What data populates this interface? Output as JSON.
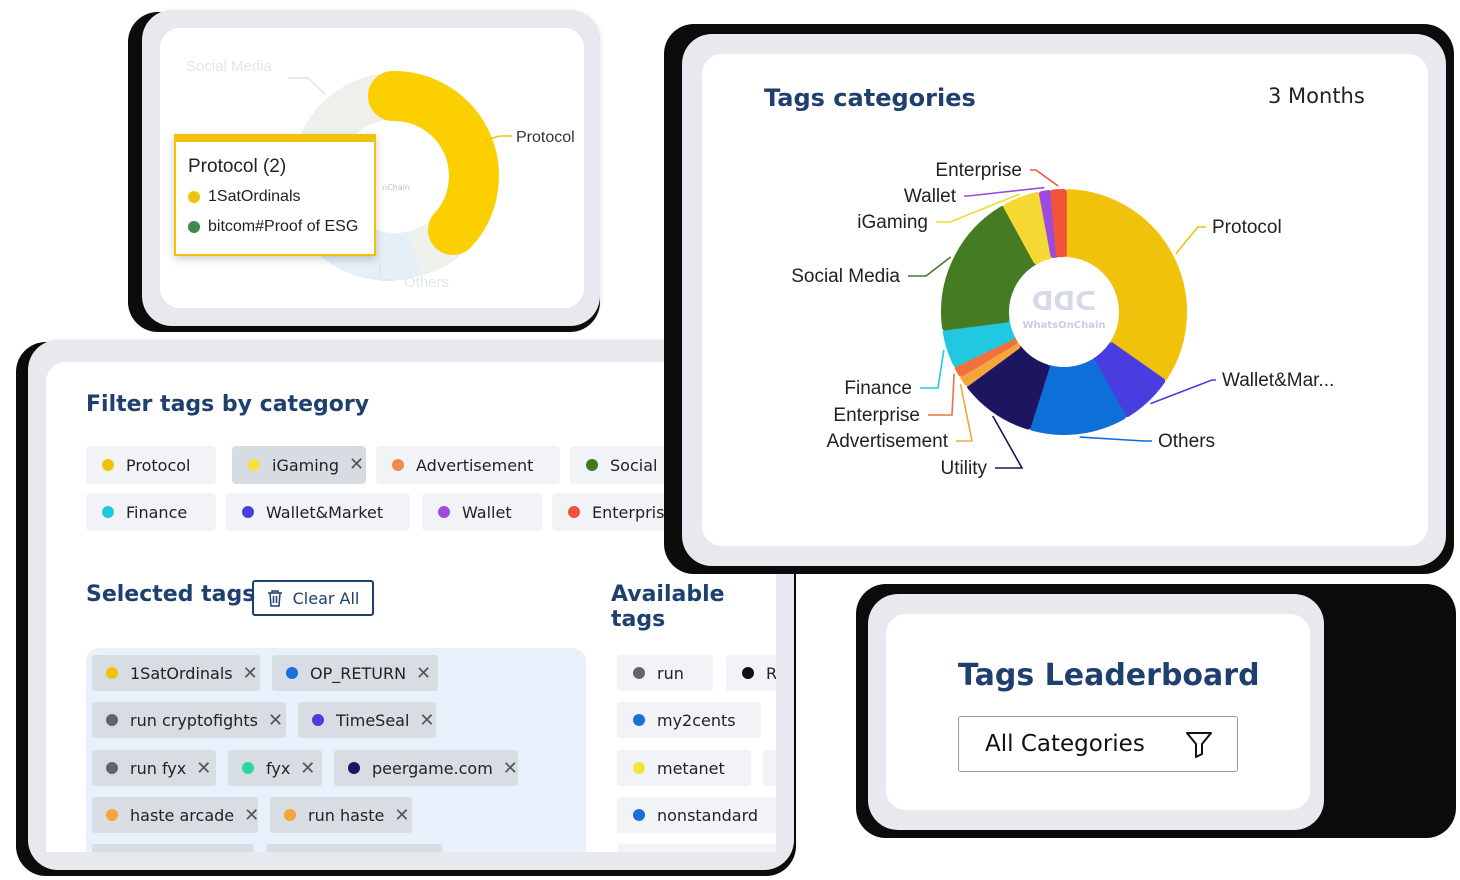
{
  "tooltip_card": {
    "labels": {
      "social_media": "Social Media",
      "protocol": "Protocol",
      "others": "Others"
    },
    "tooltip": {
      "title": "Protocol (2)",
      "items": [
        {
          "label": "1SatOrdinals",
          "color": "#f0c20c"
        },
        {
          "label": "bitcom#Proof of ESG",
          "color": "#3f8a4c"
        }
      ]
    }
  },
  "filter_card": {
    "title": "Filter tags by category",
    "categories": [
      {
        "label": "Protocol",
        "color": "#f0c20c",
        "selected": false
      },
      {
        "label": "iGaming",
        "color": "#f5e23a",
        "selected": true
      },
      {
        "label": "Advertisement",
        "color": "#f28a4b",
        "selected": false
      },
      {
        "label": "Social Media",
        "color": "#3f7a22",
        "selected": false
      },
      {
        "label": "Finance",
        "color": "#22c8e0",
        "selected": false
      },
      {
        "label": "Wallet&Market",
        "color": "#4a3de0",
        "selected": false
      },
      {
        "label": "Wallet",
        "color": "#9b4be0",
        "selected": false
      },
      {
        "label": "Enterprise",
        "color": "#f0553a",
        "selected": false
      }
    ],
    "selected_title": "Selected tags",
    "clear_all_label": "Clear All",
    "available_title": "Available tags",
    "selected_tags": [
      {
        "label": "1SatOrdinals",
        "color": "#f0c20c"
      },
      {
        "label": "OP_RETURN",
        "color": "#1a6fd8"
      },
      {
        "label": "run cryptofights",
        "color": "#6a5f6a"
      },
      {
        "label": "TimeSeal",
        "color": "#4a3de0"
      },
      {
        "label": "run fyx",
        "color": "#6a5f6a"
      },
      {
        "label": "fyx",
        "color": "#2bd6a0"
      },
      {
        "label": "peergame.com",
        "color": "#1c1660"
      },
      {
        "label": "haste arcade",
        "color": "#f5a53a"
      },
      {
        "label": "run haste",
        "color": "#f5a53a"
      }
    ],
    "available_tags": [
      {
        "label": "run",
        "color": "#6a5f6a"
      },
      {
        "label": "R",
        "color": "#111111"
      },
      {
        "label": "my2cents",
        "color": "#1a6fd8"
      },
      {
        "label": "metanet",
        "color": "#f5e23a"
      },
      {
        "label": "nonstandard",
        "color": "#1a6fd8"
      }
    ]
  },
  "categories_card": {
    "title": "Tags categories",
    "period": "3 Months",
    "watermark": "WhatsOnChain"
  },
  "chart_data": {
    "type": "pie",
    "title": "Tags categories",
    "categories": [
      "Protocol",
      "Wallet&Mar...",
      "Others",
      "Utility",
      "Advertisement",
      "Enterprise",
      "Finance",
      "Social Media",
      "iGaming",
      "Wallet",
      "Enterprise"
    ],
    "values": [
      34,
      7,
      13,
      10,
      1.5,
      1.5,
      5,
      19,
      5,
      1.5,
      2
    ],
    "colors": [
      "#f0c20c",
      "#4a3de0",
      "#0f6fd8",
      "#1c1660",
      "#f5a53a",
      "#f07040",
      "#22c8e0",
      "#457c23",
      "#f5d832",
      "#9b4be0",
      "#f0553a"
    ]
  },
  "leaderboard_card": {
    "title": "Tags Leaderboard",
    "select_value": "All Categories"
  }
}
